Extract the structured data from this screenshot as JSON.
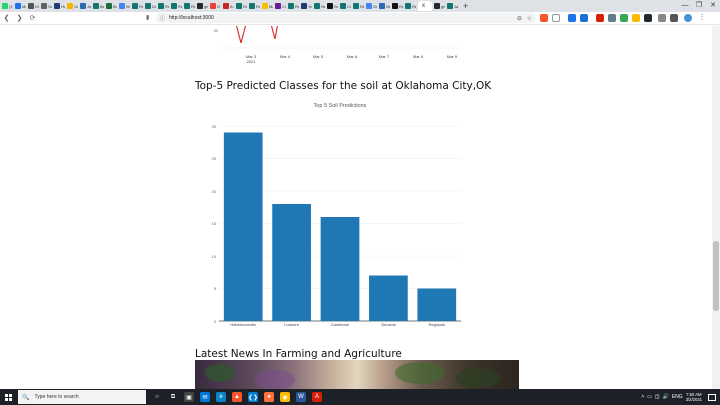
{
  "browser": {
    "tabs": [
      {
        "label": "(1)",
        "color": "#25d366"
      },
      {
        "label": "Ma",
        "color": "#1a73e8"
      },
      {
        "label": "IGF",
        "color": "#555555"
      },
      {
        "label": "So",
        "color": "#5f6368"
      },
      {
        "label": "Ho",
        "color": "#1f3b73"
      },
      {
        "label": "Ge",
        "color": "#f4b400"
      },
      {
        "label": "Jav",
        "color": "#2b6cb0"
      },
      {
        "label": "Ba",
        "color": "#11766f"
      },
      {
        "label": "Bo",
        "color": "#1b6e3a"
      },
      {
        "label": "W",
        "color": "#4285f4"
      },
      {
        "label": "Re",
        "color": "#11766f"
      },
      {
        "label": "Da",
        "color": "#11766f"
      },
      {
        "label": "Re",
        "color": "#11766f"
      },
      {
        "label": "Re",
        "color": "#11766f"
      },
      {
        "label": "Re",
        "color": "#11766f"
      },
      {
        "label": "gri",
        "color": "#24292e"
      },
      {
        "label": "G",
        "color": "#ea4335"
      },
      {
        "label": "A C",
        "color": "#c62828"
      },
      {
        "label": "Ro",
        "color": "#11766f"
      },
      {
        "label": "Re",
        "color": "#11766f"
      },
      {
        "label": "Ma",
        "color": "#fbbc04"
      },
      {
        "label": "Co",
        "color": "#6a1b9a"
      },
      {
        "label": "Re",
        "color": "#11766f"
      },
      {
        "label": "Yo",
        "color": "#1f3b73"
      },
      {
        "label": "Ne",
        "color": "#11766f"
      },
      {
        "label": "Se",
        "color": "#111111"
      },
      {
        "label": "Co",
        "color": "#11766f"
      },
      {
        "label": "Re",
        "color": "#11766f"
      },
      {
        "label": "Ge",
        "color": "#4285f4"
      },
      {
        "label": "Ne",
        "color": "#2b6cb0"
      },
      {
        "label": "Re",
        "color": "#111111"
      },
      {
        "label": "Re",
        "color": "#11766f"
      },
      {
        "label": "gri",
        "color": "#24292e"
      },
      {
        "label": "Jav",
        "color": "#11766f"
      }
    ],
    "active_tab_label": "x",
    "new_tab_symbol": "+",
    "window_controls": [
      "—",
      "❐",
      "✕"
    ],
    "nav_back": "❮",
    "nav_forward": "❯",
    "nav_reload": "⟳",
    "bookmark": "▮",
    "url_info": "ⓘ",
    "url": "http://localhost:3000",
    "zoom_symbol": "⊖",
    "star_symbol": "☆"
  },
  "page": {
    "previous_chart_ticks": {
      "y_tick": "30",
      "x_ticks": [
        "Mar 3\n2021",
        "Mar 4",
        "Mar 5",
        "Mar 6",
        "Mar 7",
        "Mar 8",
        "Mar 9"
      ]
    },
    "soil_section_title": "Top-5 Predicted Classes for the soil at Oklahoma City,OK",
    "news_section_title": "Latest News In Farming and Agriculture"
  },
  "chart_data": {
    "type": "bar",
    "title": "Top 5 Soil Predictions",
    "categories": [
      "Haberkoventis",
      "Lunnore",
      "Cambrose",
      "Gensnis",
      "Regosols"
    ],
    "values": [
      29,
      18,
      16,
      7,
      5
    ],
    "xlabel": "",
    "ylabel": "",
    "ylim": [
      0,
      30
    ],
    "yticks": [
      0,
      5,
      10,
      15,
      20,
      25,
      30
    ],
    "bar_color": "#1f77b4",
    "grid": true
  },
  "taskbar": {
    "search_placeholder": "Type here to search",
    "search_icon": "🔍",
    "time": "7:50 AM",
    "date": "3/2/2021",
    "apps": [
      {
        "name": "cortana-icon",
        "color": "#1d2127",
        "glyph": "○"
      },
      {
        "name": "task-view-icon",
        "color": "#1d2127",
        "glyph": "⧉"
      },
      {
        "name": "store-icon",
        "color": "#444444",
        "glyph": "▣"
      },
      {
        "name": "mail-icon",
        "color": "#0078d7",
        "glyph": "✉"
      },
      {
        "name": "edge-icon",
        "color": "#0a84c9",
        "glyph": "e"
      },
      {
        "name": "brave-icon",
        "color": "#fb542b",
        "glyph": "▲"
      },
      {
        "name": "vscode-icon",
        "color": "#007acc",
        "glyph": "❮❯"
      },
      {
        "name": "firefox-icon",
        "color": "#ff7139",
        "glyph": "●"
      },
      {
        "name": "chrome-icon",
        "color": "#fbbc04",
        "glyph": "◉"
      },
      {
        "name": "word-icon",
        "color": "#2b579a",
        "glyph": "W"
      },
      {
        "name": "acrobat-icon",
        "color": "#d81e05",
        "glyph": "A"
      }
    ],
    "tray_icons": [
      "˄",
      "▭",
      "◫",
      "🔊",
      "ENG"
    ]
  }
}
